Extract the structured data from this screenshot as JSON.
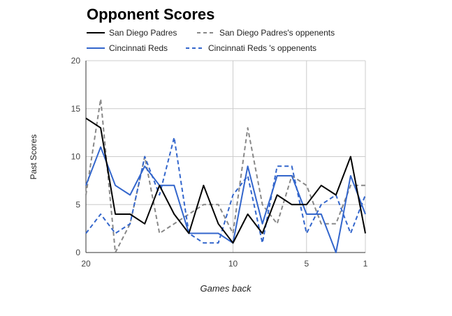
{
  "chart_data": {
    "type": "line",
    "title": "Opponent Scores",
    "xlabel": "Games back",
    "ylabel": "Past Scores",
    "x_reversed": true,
    "xlim": [
      20,
      1
    ],
    "ylim": [
      0,
      20
    ],
    "x": [
      20,
      19,
      18,
      17,
      16,
      15,
      14,
      13,
      12,
      11,
      10,
      9,
      8,
      7,
      6,
      5,
      4,
      3,
      2,
      1
    ],
    "x_ticks": [
      20,
      10,
      5,
      1
    ],
    "y_ticks": [
      0,
      5,
      10,
      15,
      20
    ],
    "grid": true,
    "legend_position": "top",
    "series": [
      {
        "name": "San Diego Padres",
        "color": "#000000",
        "dash": "solid",
        "values": [
          14,
          13,
          4,
          4,
          3,
          7,
          4,
          2,
          7,
          3,
          1,
          4,
          2,
          6,
          5,
          5,
          7,
          6,
          10,
          2
        ]
      },
      {
        "name": "San Diego Padres's oppenents",
        "color": "#888888",
        "dash": "dashed",
        "values": [
          6,
          16,
          0,
          3,
          10,
          2,
          3,
          4,
          5,
          5,
          2,
          13,
          5,
          3,
          8,
          7,
          3,
          3,
          7,
          7
        ]
      },
      {
        "name": "Cincinnati Reds",
        "color": "#3366cc",
        "dash": "solid",
        "values": [
          7,
          11,
          7,
          6,
          9,
          7,
          7,
          2,
          2,
          2,
          1,
          9,
          3,
          8,
          8,
          4,
          4,
          0,
          8,
          4
        ]
      },
      {
        "name": "Cincinnati Reds 's oppenents",
        "color": "#3366cc",
        "dash": "dashed",
        "values": [
          2,
          4,
          2,
          3,
          10,
          6,
          12,
          2,
          1,
          1,
          6,
          8,
          1,
          9,
          9,
          2,
          5,
          6,
          2,
          6
        ]
      }
    ]
  }
}
